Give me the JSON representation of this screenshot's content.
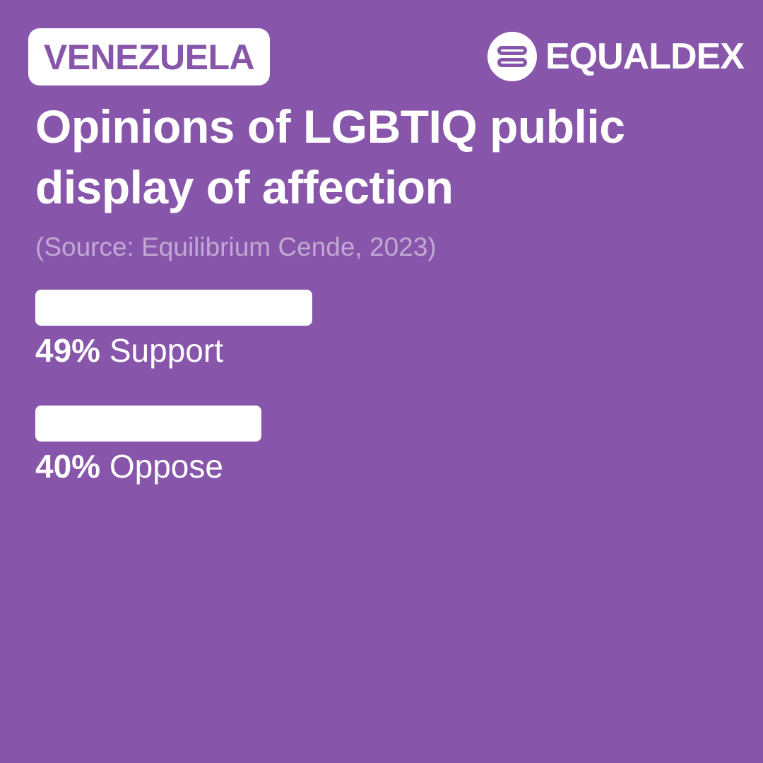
{
  "header": {
    "country": "VENEZUELA",
    "brand": "EQUALDEX",
    "brand_icon": "equaldex-logo-icon"
  },
  "title": "Opinions of LGBTIQ public display of affection",
  "source": "(Source: Equilibrium Cende, 2023)",
  "colors": {
    "background": "#8755a9",
    "bar": "#ffffff",
    "source_text": "#c2a9d5"
  },
  "chart_data": {
    "type": "bar",
    "orientation": "horizontal",
    "categories": [
      "Support",
      "Oppose"
    ],
    "values": [
      49,
      40
    ],
    "value_labels": [
      "49%",
      "40%"
    ],
    "unit": "%",
    "xlim": [
      0,
      100
    ],
    "grid": false,
    "legend": "none"
  }
}
